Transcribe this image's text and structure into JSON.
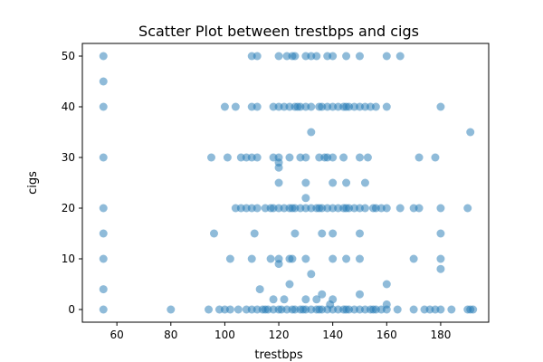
{
  "chart_data": {
    "type": "scatter",
    "title": "Scatter Plot between trestbps and cigs",
    "xlabel": "trestbps",
    "ylabel": "cigs",
    "xlim": [
      47.2,
      197.8
    ],
    "ylim": [
      -2.5,
      52.5
    ],
    "xticks": [
      60,
      80,
      100,
      120,
      140,
      160,
      180
    ],
    "yticks": [
      0,
      10,
      20,
      30,
      40,
      50
    ],
    "grid": false,
    "legend": "none",
    "colors": {
      "marker": "#1f77b4",
      "marker_alpha": 0.5,
      "axes": "#000000",
      "background": "#ffffff"
    },
    "points": [
      [
        55,
        0
      ],
      [
        55,
        4
      ],
      [
        55,
        10
      ],
      [
        55,
        15
      ],
      [
        55,
        20
      ],
      [
        55,
        30
      ],
      [
        55,
        40
      ],
      [
        55,
        45
      ],
      [
        55,
        50
      ],
      [
        80,
        0
      ],
      [
        94,
        0
      ],
      [
        95,
        30
      ],
      [
        96,
        15
      ],
      [
        98,
        0
      ],
      [
        100,
        0
      ],
      [
        100,
        40
      ],
      [
        101,
        30
      ],
      [
        102,
        10
      ],
      [
        102,
        0
      ],
      [
        104,
        20
      ],
      [
        104,
        40
      ],
      [
        105,
        0
      ],
      [
        106,
        30
      ],
      [
        106,
        20
      ],
      [
        108,
        30
      ],
      [
        108,
        0
      ],
      [
        108,
        20
      ],
      [
        110,
        0
      ],
      [
        110,
        10
      ],
      [
        110,
        20
      ],
      [
        110,
        30
      ],
      [
        110,
        40
      ],
      [
        110,
        50
      ],
      [
        111,
        15
      ],
      [
        112,
        0
      ],
      [
        112,
        30
      ],
      [
        112,
        20
      ],
      [
        112,
        40
      ],
      [
        112,
        50
      ],
      [
        113,
        4
      ],
      [
        114,
        0
      ],
      [
        115,
        20
      ],
      [
        115,
        0
      ],
      [
        116,
        0
      ],
      [
        117,
        20
      ],
      [
        117,
        10
      ],
      [
        118,
        0
      ],
      [
        118,
        20
      ],
      [
        118,
        40
      ],
      [
        118,
        30
      ],
      [
        118,
        2
      ],
      [
        120,
        0
      ],
      [
        120,
        10
      ],
      [
        120,
        20
      ],
      [
        120,
        25
      ],
      [
        120,
        28
      ],
      [
        120,
        29
      ],
      [
        120,
        30
      ],
      [
        120,
        40
      ],
      [
        120,
        50
      ],
      [
        120,
        9
      ],
      [
        121,
        0
      ],
      [
        122,
        20
      ],
      [
        122,
        40
      ],
      [
        122,
        2
      ],
      [
        123,
        0
      ],
      [
        123,
        50
      ],
      [
        124,
        20
      ],
      [
        124,
        10
      ],
      [
        124,
        5
      ],
      [
        124,
        30
      ],
      [
        124,
        40
      ],
      [
        125,
        0
      ],
      [
        125,
        20
      ],
      [
        125,
        10
      ],
      [
        125,
        50
      ],
      [
        126,
        0
      ],
      [
        126,
        40
      ],
      [
        126,
        20
      ],
      [
        126,
        15
      ],
      [
        126,
        50
      ],
      [
        127,
        40
      ],
      [
        128,
        0
      ],
      [
        128,
        20
      ],
      [
        128,
        40
      ],
      [
        128,
        30
      ],
      [
        129,
        0
      ],
      [
        130,
        0
      ],
      [
        130,
        2
      ],
      [
        130,
        10
      ],
      [
        130,
        20
      ],
      [
        130,
        22
      ],
      [
        130,
        25
      ],
      [
        130,
        30
      ],
      [
        130,
        40
      ],
      [
        130,
        50
      ],
      [
        132,
        0
      ],
      [
        132,
        7
      ],
      [
        132,
        20
      ],
      [
        132,
        35
      ],
      [
        132,
        40
      ],
      [
        132,
        50
      ],
      [
        134,
        0
      ],
      [
        134,
        20
      ],
      [
        134,
        2
      ],
      [
        134,
        50
      ],
      [
        135,
        0
      ],
      [
        135,
        20
      ],
      [
        135,
        30
      ],
      [
        135,
        40
      ],
      [
        136,
        0
      ],
      [
        136,
        3
      ],
      [
        136,
        15
      ],
      [
        136,
        20
      ],
      [
        136,
        40
      ],
      [
        137,
        30
      ],
      [
        138,
        0
      ],
      [
        138,
        20
      ],
      [
        138,
        40
      ],
      [
        138,
        50
      ],
      [
        138,
        30
      ],
      [
        139,
        1
      ],
      [
        140,
        0
      ],
      [
        140,
        2
      ],
      [
        140,
        10
      ],
      [
        140,
        15
      ],
      [
        140,
        20
      ],
      [
        140,
        25
      ],
      [
        140,
        30
      ],
      [
        140,
        40
      ],
      [
        140,
        50
      ],
      [
        142,
        0
      ],
      [
        142,
        20
      ],
      [
        142,
        40
      ],
      [
        144,
        0
      ],
      [
        144,
        20
      ],
      [
        144,
        30
      ],
      [
        144,
        40
      ],
      [
        145,
        0
      ],
      [
        145,
        10
      ],
      [
        145,
        20
      ],
      [
        145,
        25
      ],
      [
        145,
        40
      ],
      [
        145,
        50
      ],
      [
        146,
        0
      ],
      [
        146,
        20
      ],
      [
        146,
        40
      ],
      [
        148,
        0
      ],
      [
        148,
        20
      ],
      [
        148,
        40
      ],
      [
        150,
        0
      ],
      [
        150,
        3
      ],
      [
        150,
        10
      ],
      [
        150,
        15
      ],
      [
        150,
        20
      ],
      [
        150,
        30
      ],
      [
        150,
        40
      ],
      [
        150,
        50
      ],
      [
        152,
        0
      ],
      [
        152,
        20
      ],
      [
        152,
        25
      ],
      [
        152,
        40
      ],
      [
        153,
        30
      ],
      [
        154,
        0
      ],
      [
        154,
        40
      ],
      [
        155,
        20
      ],
      [
        155,
        0
      ],
      [
        156,
        0
      ],
      [
        156,
        20
      ],
      [
        156,
        40
      ],
      [
        158,
        0
      ],
      [
        158,
        20
      ],
      [
        160,
        0
      ],
      [
        160,
        1
      ],
      [
        160,
        5
      ],
      [
        160,
        20
      ],
      [
        160,
        40
      ],
      [
        160,
        50
      ],
      [
        164,
        0
      ],
      [
        165,
        50
      ],
      [
        165,
        20
      ],
      [
        170,
        0
      ],
      [
        170,
        10
      ],
      [
        170,
        20
      ],
      [
        172,
        30
      ],
      [
        172,
        20
      ],
      [
        174,
        0
      ],
      [
        176,
        0
      ],
      [
        178,
        0
      ],
      [
        178,
        30
      ],
      [
        180,
        0
      ],
      [
        180,
        8
      ],
      [
        180,
        10
      ],
      [
        180,
        15
      ],
      [
        180,
        20
      ],
      [
        180,
        40
      ],
      [
        184,
        0
      ],
      [
        190,
        0
      ],
      [
        190,
        20
      ],
      [
        191,
        0
      ],
      [
        191,
        35
      ],
      [
        192,
        0
      ]
    ]
  }
}
